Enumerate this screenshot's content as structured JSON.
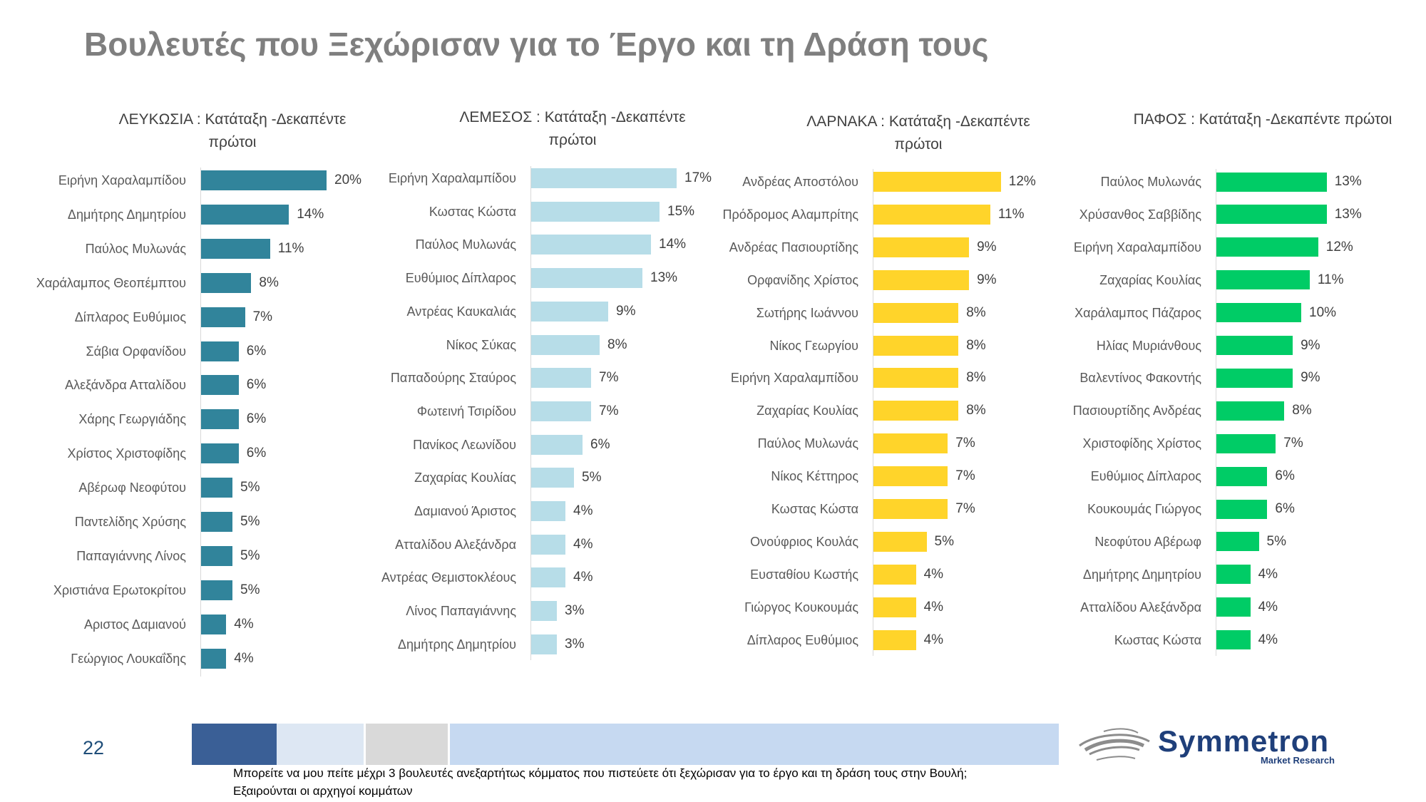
{
  "slide": {
    "title": "Βουλευτές που Ξεχώρισαν για το Έργο και τη Δράση τους",
    "page_number": "22",
    "question": "Μπορείτε να μου πείτε μέχρι 3 βουλευτές ανεξαρτήτως κόμματος που πιστεύετε ότι ξεχώρισαν για το έργο και τη δράση τους στην Βουλή;",
    "note": "Εξαιρούνται οι αρχηγοί κομμάτων",
    "logo": {
      "name": "Symmetron",
      "tagline": "Market Research",
      "color": "#1f3f7a",
      "swoosh_color": "#8c8c8c"
    },
    "footer_strip_colors": [
      "#3a5f96",
      "#dde7f3",
      "#d9d9d9",
      "#c6d9f1"
    ]
  },
  "chart_data": [
    {
      "type": "bar",
      "orientation": "horizontal",
      "title": "ΛΕΥΚΩΣΙΑ : Κατάταξη -Δεκαπέντε πρώτοι",
      "color": "#31849b",
      "value_suffix": "%",
      "categories": [
        "Ειρήνη Χαραλαμπίδου",
        "Δημήτρης Δημητρίου",
        "Παύλος Μυλωνάς",
        "Χαράλαμπος Θεοπέμπτου",
        "Δίπλαρος Ευθύμιος",
        "Σάβια Ορφανίδου",
        "Αλεξάνδρα Ατταλίδου",
        "Χάρης Γεωργιάδης",
        "Χρίστος Χριστοφίδης",
        "Αβέρωφ Νεοφύτου",
        "Παντελίδης Χρύσης",
        "Παπαγιάννης Λίνος",
        "Χριστιάνα Ερωτοκρίτου",
        "Αριστος Δαμιανού",
        "Γεώργιος Λουκαΐδης"
      ],
      "values": [
        20,
        14,
        11,
        8,
        7,
        6,
        6,
        6,
        6,
        5,
        5,
        5,
        5,
        4,
        4
      ]
    },
    {
      "type": "bar",
      "orientation": "horizontal",
      "title": "ΛΕΜΕΣΟΣ : Κατάταξη -Δεκαπέντε πρώτοι",
      "color": "#b7dde8",
      "value_suffix": "%",
      "categories": [
        "Ειρήνη Χαραλαμπίδου",
        "Κωστας Κώστα",
        "Παύλος Μυλωνάς",
        "Ευθύμιος Δίπλαρος",
        "Αντρέας Καυκαλιάς",
        "Νίκος Σύκας",
        "Παπαδούρης Σταύρος",
        "Φωτεινή Τσιρίδου",
        "Πανίκος Λεωνίδου",
        "Ζαχαρίας Κουλίας",
        "Δαμιανού Άριστος",
        "Ατταλίδου Αλεξάνδρα",
        "Αντρέας Θεμιστοκλέους",
        "Λίνος Παπαγιάννης",
        "Δημήτρης Δημητρίου"
      ],
      "values": [
        17,
        15,
        14,
        13,
        9,
        8,
        7,
        7,
        6,
        5,
        4,
        4,
        4,
        3,
        3
      ]
    },
    {
      "type": "bar",
      "orientation": "horizontal",
      "title": "ΛΑΡΝΑΚΑ : Κατάταξη -Δεκαπέντε πρώτοι",
      "color": "#ffd42a",
      "value_suffix": "%",
      "categories": [
        "Ανδρέας Αποστόλου",
        "Πρόδρομος Αλαμπρίτης",
        "Ανδρέας Πασιουρτίδης",
        "Ορφανίδης Χρίστος",
        "Σωτήρης Ιωάννου",
        "Νίκος Γεωργίου",
        "Ειρήνη Χαραλαμπίδου",
        "Ζαχαρίας Κουλίας",
        "Παύλος Μυλωνάς",
        "Νίκος Κέττηρος",
        "Κωστας Κώστα",
        "Ονούφριος Κουλάς",
        "Ευσταθίου Κωστής",
        "Γιώργος Κουκουμάς",
        "Δίπλαρος Ευθύμιος"
      ],
      "values": [
        12,
        11,
        9,
        9,
        8,
        8,
        8,
        8,
        7,
        7,
        7,
        5,
        4,
        4,
        4
      ]
    },
    {
      "type": "bar",
      "orientation": "horizontal",
      "title": "ΠΑΦΟΣ : Κατάταξη -Δεκαπέντε πρώτοι",
      "color": "#00cc66",
      "value_suffix": "%",
      "categories": [
        "Παύλος Μυλωνάς",
        "Χρύσανθος Σαββίδης",
        "Ειρήνη Χαραλαμπίδου",
        "Ζαχαρίας Κουλίας",
        "Χαράλαμπος Πάζαρος",
        "Ηλίας Μυριάνθους",
        "Βαλεντίνος Φακοντής",
        "Πασιουρτίδης Ανδρέας",
        "Χριστοφίδης Χρίστος",
        "Ευθύμιος Δίπλαρος",
        "Κουκουμάς Γιώργος",
        "Νεοφύτου Αβέρωφ",
        "Δημήτρης Δημητρίου",
        "Ατταλίδου Αλεξάνδρα",
        "Κωστας Κώστα"
      ],
      "values": [
        13,
        13,
        12,
        11,
        10,
        9,
        9,
        8,
        7,
        6,
        6,
        5,
        4,
        4,
        4
      ]
    }
  ]
}
